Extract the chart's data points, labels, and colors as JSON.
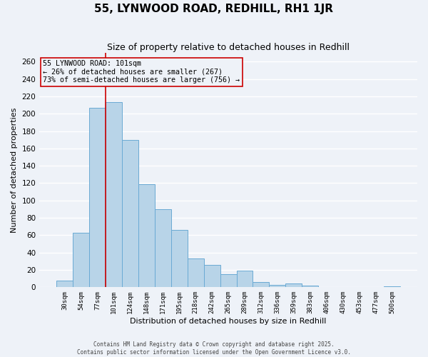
{
  "title": "55, LYNWOOD ROAD, REDHILL, RH1 1JR",
  "subtitle": "Size of property relative to detached houses in Redhill",
  "xlabel": "Distribution of detached houses by size in Redhill",
  "ylabel": "Number of detached properties",
  "bar_labels": [
    "30sqm",
    "54sqm",
    "77sqm",
    "101sqm",
    "124sqm",
    "148sqm",
    "171sqm",
    "195sqm",
    "218sqm",
    "242sqm",
    "265sqm",
    "289sqm",
    "312sqm",
    "336sqm",
    "359sqm",
    "383sqm",
    "406sqm",
    "430sqm",
    "453sqm",
    "477sqm",
    "500sqm"
  ],
  "bar_values": [
    8,
    63,
    207,
    213,
    170,
    119,
    90,
    66,
    33,
    26,
    15,
    19,
    6,
    3,
    4,
    2,
    0,
    0,
    0,
    0,
    1
  ],
  "bar_color": "#b8d4e8",
  "bar_edge_color": "#6aaad4",
  "ylim": [
    0,
    270
  ],
  "yticks": [
    0,
    20,
    40,
    60,
    80,
    100,
    120,
    140,
    160,
    180,
    200,
    220,
    240,
    260
  ],
  "vline_color": "#cc0000",
  "vline_bar_index": 3,
  "annotation_title": "55 LYNWOOD ROAD: 101sqm",
  "annotation_line1": "← 26% of detached houses are smaller (267)",
  "annotation_line2": "73% of semi-detached houses are larger (756) →",
  "footer_line1": "Contains HM Land Registry data © Crown copyright and database right 2025.",
  "footer_line2": "Contains public sector information licensed under the Open Government Licence v3.0.",
  "background_color": "#eef2f8",
  "grid_color": "#ffffff",
  "title_fontsize": 11,
  "subtitle_fontsize": 9
}
